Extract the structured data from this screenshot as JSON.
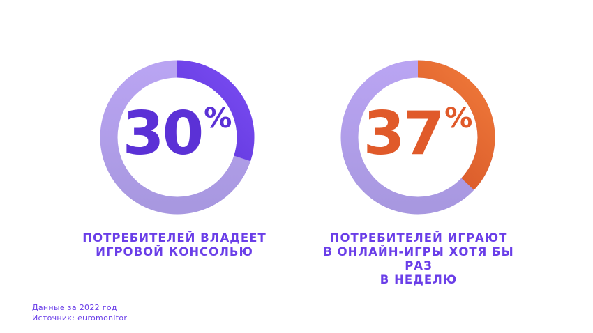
{
  "chart_data": [
    {
      "type": "pie",
      "value": 30,
      "value_label": "30",
      "unit": "%",
      "caption_lines": [
        "ПОТРЕБИТЕЛЕЙ ВЛАДЕЕТ",
        "ИГРОВОЙ КОНСОЛЬЮ"
      ],
      "colors": {
        "fill_start": "#4a25c9",
        "fill_end": "#7a4cf2",
        "track_top": "#b9a4f2",
        "track_bottom": "#a898e0"
      }
    },
    {
      "type": "pie",
      "value": 37,
      "value_label": "37",
      "unit": "%",
      "caption_lines": [
        "ПОТРЕБИТЕЛЕЙ ИГРАЮТ",
        "В ОНЛАЙН-ИГРЫ ХОТЯ БЫ РАЗ",
        "В НЕДЕЛЮ"
      ],
      "colors": {
        "fill_start": "#c8421f",
        "fill_end": "#f07a3a",
        "track_top": "#b9a4f2",
        "track_bottom": "#a898e0"
      }
    }
  ],
  "footer": {
    "data_year": "Данные за 2022 год",
    "source": "Источник: euromonitor"
  }
}
